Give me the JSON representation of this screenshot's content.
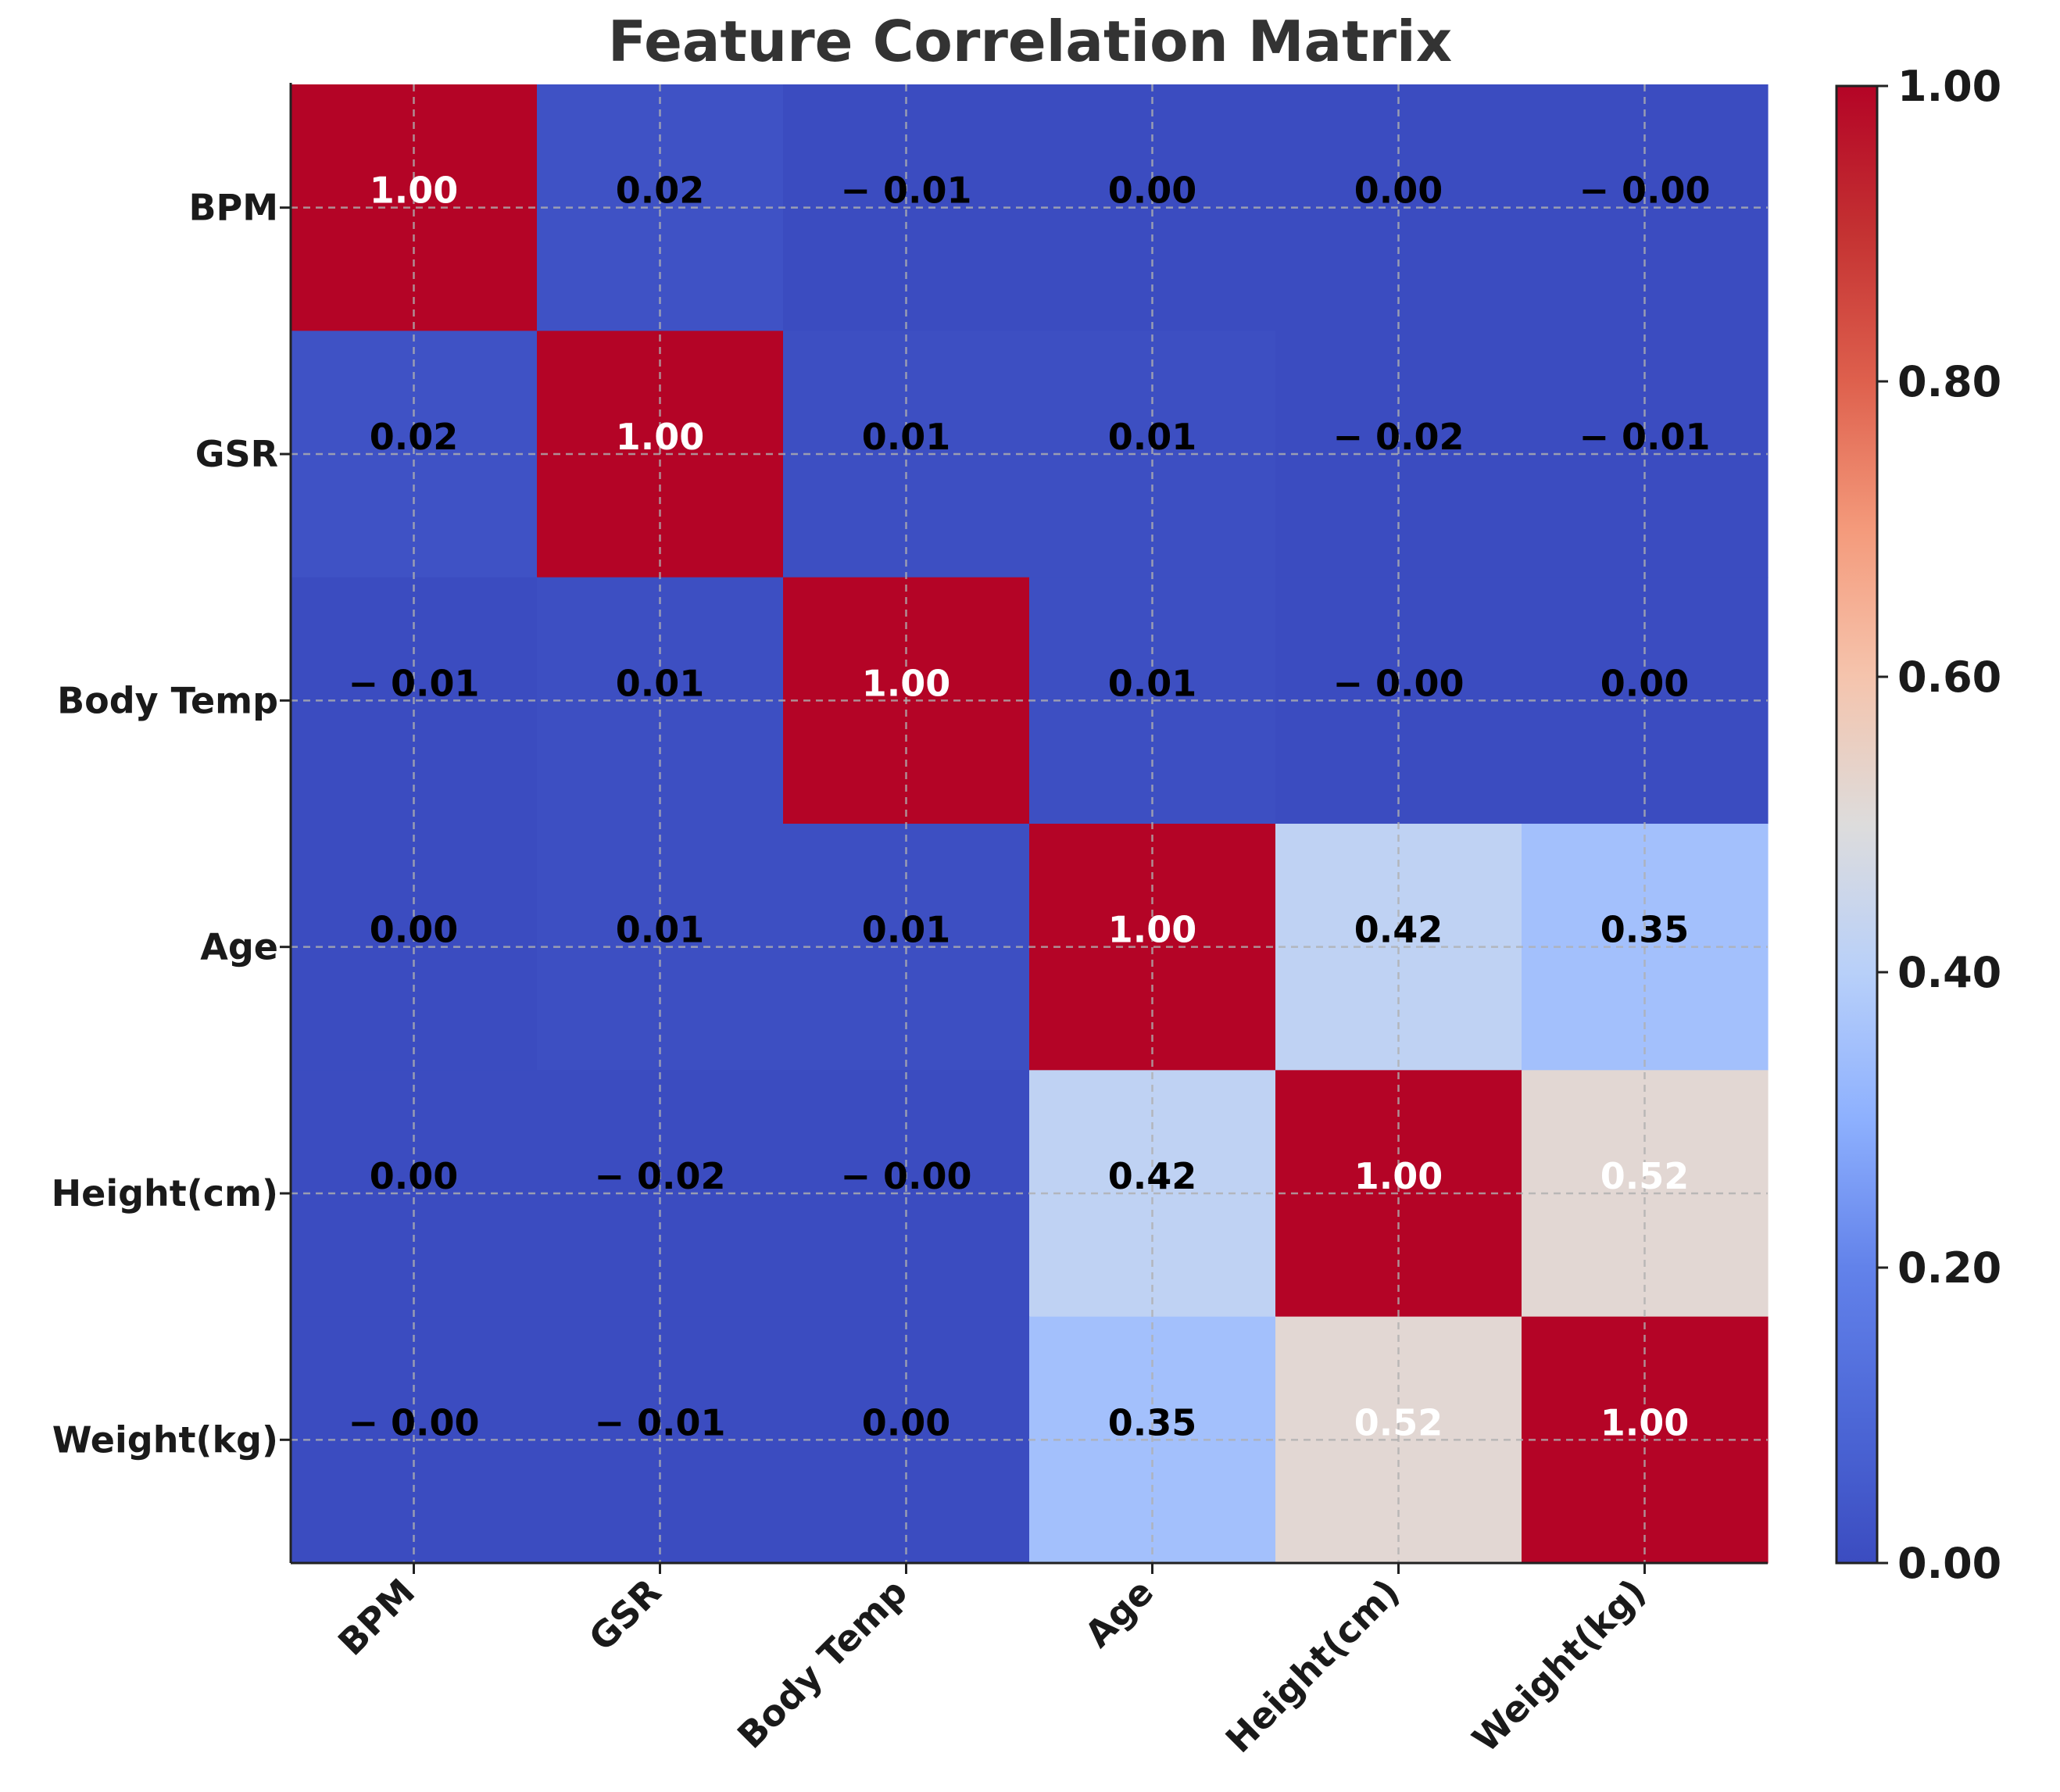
{
  "chart_data": {
    "type": "heatmap",
    "title": "Feature Correlation Matrix",
    "x_labels": [
      "BPM",
      "GSR",
      "Body Temp",
      "Age",
      "Height(cm)",
      "Weight(kg)"
    ],
    "y_labels": [
      "BPM",
      "GSR",
      "Body Temp",
      "Age",
      "Height(cm)",
      "Weight(kg)"
    ],
    "values": [
      [
        1.0,
        0.02,
        -0.01,
        0.0,
        0.0,
        -0.0
      ],
      [
        0.02,
        1.0,
        0.01,
        0.01,
        -0.02,
        -0.01
      ],
      [
        -0.01,
        0.01,
        1.0,
        0.01,
        -0.0,
        0.0
      ],
      [
        0.0,
        0.01,
        0.01,
        1.0,
        0.42,
        0.35
      ],
      [
        0.0,
        -0.02,
        -0.0,
        0.42,
        1.0,
        0.52
      ],
      [
        -0.0,
        -0.01,
        0.0,
        0.35,
        0.52,
        1.0
      ]
    ],
    "cell_labels": [
      [
        "1.00",
        "0.02",
        "− 0.01",
        "0.00",
        "0.00",
        "− 0.00"
      ],
      [
        "0.02",
        "1.00",
        "0.01",
        "0.01",
        "− 0.02",
        "− 0.01"
      ],
      [
        "− 0.01",
        "0.01",
        "1.00",
        "0.01",
        "− 0.00",
        "0.00"
      ],
      [
        "0.00",
        "0.01",
        "0.01",
        "1.00",
        "0.42",
        "0.35"
      ],
      [
        "0.00",
        "− 0.02",
        "− 0.00",
        "0.42",
        "1.00",
        "0.52"
      ],
      [
        "− 0.00",
        "− 0.01",
        "0.00",
        "0.35",
        "0.52",
        "1.00"
      ]
    ],
    "colormap": "coolwarm",
    "vmin": 0.0,
    "vmax": 1.0,
    "colorbar": {
      "ticks": [
        0.0,
        0.2,
        0.4,
        0.6,
        0.8,
        1.0
      ],
      "tick_labels": [
        "0.00",
        "0.20",
        "0.40",
        "0.60",
        "0.80",
        "1.00"
      ],
      "placement": "right"
    },
    "grid": true
  },
  "colors": {
    "cold": "#3b4cc0",
    "neutral": "#dddcdc",
    "hot": "#b40426",
    "text_dark": "#000000",
    "text_light": "#ffffff"
  }
}
